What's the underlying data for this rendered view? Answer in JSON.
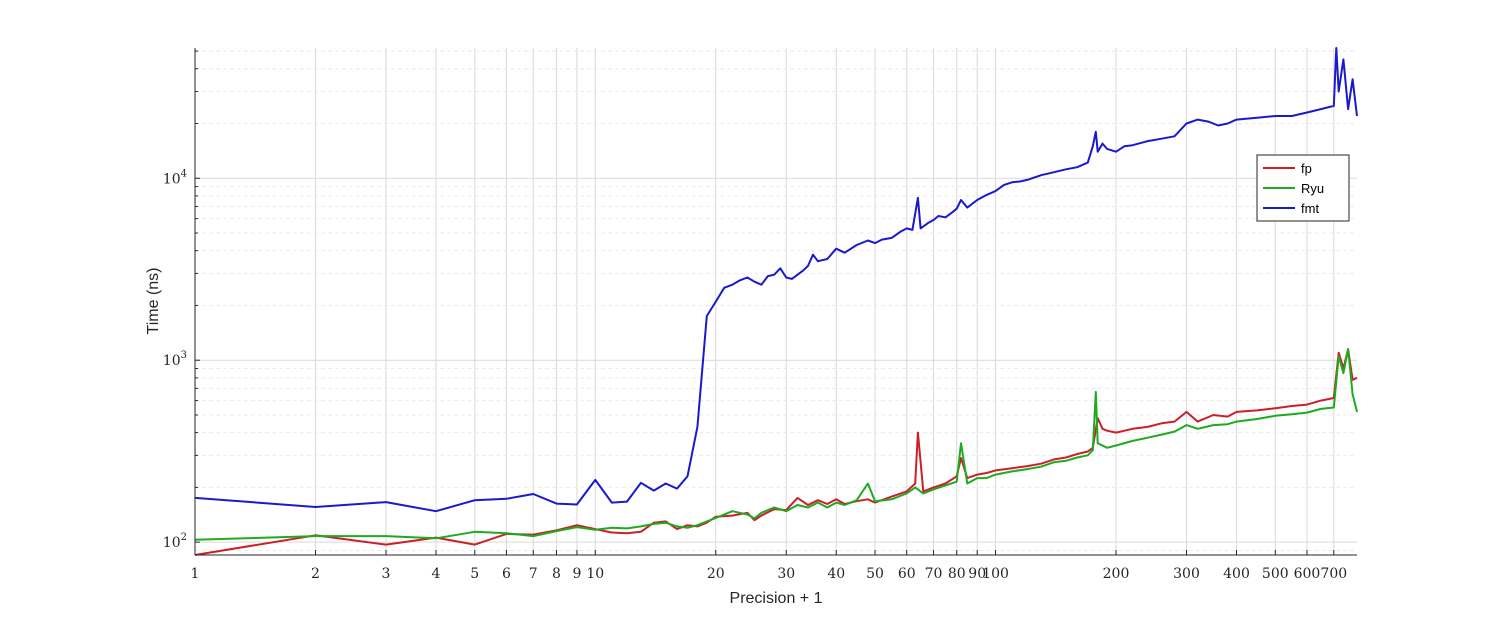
{
  "chart_data": {
    "type": "line",
    "xlabel": "Precision + 1",
    "ylabel": "Time (ns)",
    "xscale": "log",
    "yscale": "log",
    "xlim": [
      1,
      800
    ],
    "ylim": [
      85,
      52000
    ],
    "grid": true,
    "legend_position": "right",
    "x_ticks": [
      {
        "value": 1,
        "label": "1"
      },
      {
        "value": 2,
        "label": "2"
      },
      {
        "value": 3,
        "label": "3"
      },
      {
        "value": 4,
        "label": "4"
      },
      {
        "value": 5,
        "label": "5"
      },
      {
        "value": 6,
        "label": "6"
      },
      {
        "value": 7,
        "label": "7"
      },
      {
        "value": 8,
        "label": "8"
      },
      {
        "value": 9,
        "label": "9"
      },
      {
        "value": 10,
        "label": "10"
      },
      {
        "value": 20,
        "label": "20"
      },
      {
        "value": 30,
        "label": "30"
      },
      {
        "value": 40,
        "label": "40"
      },
      {
        "value": 50,
        "label": "50"
      },
      {
        "value": 60,
        "label": "60"
      },
      {
        "value": 70,
        "label": "70"
      },
      {
        "value": 80,
        "label": "80"
      },
      {
        "value": 90,
        "label": "90"
      },
      {
        "value": 100,
        "label": "100"
      },
      {
        "value": 200,
        "label": "200"
      },
      {
        "value": 300,
        "label": "300"
      },
      {
        "value": 400,
        "label": "400"
      },
      {
        "value": 500,
        "label": "500"
      },
      {
        "value": 600,
        "label": "600"
      },
      {
        "value": 700,
        "label": "700"
      }
    ],
    "y_ticks": [
      {
        "value": 100,
        "base": "10",
        "exp": "2"
      },
      {
        "value": 1000,
        "base": "10",
        "exp": "3"
      },
      {
        "value": 10000,
        "base": "10",
        "exp": "4"
      }
    ],
    "series": [
      {
        "name": "fp",
        "color": "#cc1f2b",
        "points": [
          [
            1,
            85
          ],
          [
            2,
            109
          ],
          [
            3,
            97
          ],
          [
            4,
            106
          ],
          [
            5,
            97
          ],
          [
            6,
            111
          ],
          [
            7,
            110
          ],
          [
            8,
            116
          ],
          [
            9,
            124
          ],
          [
            10,
            118
          ],
          [
            11,
            113
          ],
          [
            12,
            112
          ],
          [
            13,
            114
          ],
          [
            14,
            128
          ],
          [
            15,
            130
          ],
          [
            16,
            118
          ],
          [
            17,
            124
          ],
          [
            18,
            122
          ],
          [
            19,
            128
          ],
          [
            20,
            138
          ],
          [
            22,
            140
          ],
          [
            24,
            145
          ],
          [
            25,
            132
          ],
          [
            26,
            140
          ],
          [
            28,
            152
          ],
          [
            30,
            150
          ],
          [
            32,
            175
          ],
          [
            34,
            160
          ],
          [
            36,
            170
          ],
          [
            38,
            162
          ],
          [
            40,
            172
          ],
          [
            42,
            162
          ],
          [
            45,
            168
          ],
          [
            48,
            172
          ],
          [
            50,
            165
          ],
          [
            55,
            178
          ],
          [
            60,
            190
          ],
          [
            63,
            210
          ],
          [
            64,
            400
          ],
          [
            66,
            190
          ],
          [
            70,
            200
          ],
          [
            75,
            210
          ],
          [
            80,
            230
          ],
          [
            82,
            290
          ],
          [
            85,
            225
          ],
          [
            90,
            235
          ],
          [
            95,
            240
          ],
          [
            100,
            248
          ],
          [
            110,
            255
          ],
          [
            120,
            262
          ],
          [
            130,
            270
          ],
          [
            140,
            285
          ],
          [
            150,
            292
          ],
          [
            160,
            305
          ],
          [
            170,
            315
          ],
          [
            175,
            330
          ],
          [
            180,
            480
          ],
          [
            185,
            420
          ],
          [
            190,
            410
          ],
          [
            200,
            400
          ],
          [
            220,
            420
          ],
          [
            240,
            430
          ],
          [
            260,
            450
          ],
          [
            280,
            460
          ],
          [
            300,
            520
          ],
          [
            320,
            460
          ],
          [
            350,
            500
          ],
          [
            380,
            490
          ],
          [
            400,
            520
          ],
          [
            450,
            530
          ],
          [
            500,
            545
          ],
          [
            550,
            560
          ],
          [
            600,
            570
          ],
          [
            650,
            600
          ],
          [
            700,
            620
          ],
          [
            720,
            1100
          ],
          [
            740,
            900
          ],
          [
            760,
            1150
          ],
          [
            780,
            780
          ],
          [
            800,
            800
          ]
        ]
      },
      {
        "name": "Ryu",
        "color": "#1faa1f",
        "points": [
          [
            1,
            103
          ],
          [
            2,
            108
          ],
          [
            3,
            108
          ],
          [
            4,
            105
          ],
          [
            5,
            114
          ],
          [
            6,
            112
          ],
          [
            7,
            108
          ],
          [
            8,
            115
          ],
          [
            9,
            121
          ],
          [
            10,
            117
          ],
          [
            11,
            120
          ],
          [
            12,
            119
          ],
          [
            13,
            122
          ],
          [
            14,
            126
          ],
          [
            15,
            128
          ],
          [
            16,
            122
          ],
          [
            17,
            120
          ],
          [
            18,
            124
          ],
          [
            19,
            130
          ],
          [
            20,
            136
          ],
          [
            22,
            148
          ],
          [
            24,
            142
          ],
          [
            25,
            135
          ],
          [
            26,
            145
          ],
          [
            28,
            155
          ],
          [
            30,
            148
          ],
          [
            32,
            160
          ],
          [
            34,
            155
          ],
          [
            36,
            165
          ],
          [
            38,
            155
          ],
          [
            40,
            165
          ],
          [
            42,
            160
          ],
          [
            45,
            170
          ],
          [
            48,
            210
          ],
          [
            50,
            168
          ],
          [
            55,
            172
          ],
          [
            60,
            185
          ],
          [
            63,
            200
          ],
          [
            66,
            185
          ],
          [
            70,
            195
          ],
          [
            75,
            205
          ],
          [
            80,
            215
          ],
          [
            82,
            350
          ],
          [
            85,
            210
          ],
          [
            90,
            225
          ],
          [
            95,
            225
          ],
          [
            100,
            235
          ],
          [
            110,
            245
          ],
          [
            120,
            252
          ],
          [
            130,
            260
          ],
          [
            140,
            275
          ],
          [
            150,
            280
          ],
          [
            160,
            292
          ],
          [
            170,
            300
          ],
          [
            175,
            320
          ],
          [
            178,
            670
          ],
          [
            180,
            350
          ],
          [
            190,
            330
          ],
          [
            200,
            340
          ],
          [
            220,
            360
          ],
          [
            240,
            375
          ],
          [
            260,
            390
          ],
          [
            280,
            405
          ],
          [
            300,
            440
          ],
          [
            320,
            420
          ],
          [
            350,
            440
          ],
          [
            380,
            445
          ],
          [
            400,
            460
          ],
          [
            450,
            475
          ],
          [
            500,
            495
          ],
          [
            550,
            505
          ],
          [
            600,
            515
          ],
          [
            650,
            540
          ],
          [
            700,
            550
          ],
          [
            720,
            1050
          ],
          [
            740,
            850
          ],
          [
            760,
            1150
          ],
          [
            780,
            650
          ],
          [
            800,
            520
          ]
        ]
      },
      {
        "name": "fmt",
        "color": "#1a1acc",
        "points": [
          [
            1,
            175
          ],
          [
            2,
            156
          ],
          [
            3,
            166
          ],
          [
            4,
            148
          ],
          [
            5,
            170
          ],
          [
            6,
            173
          ],
          [
            7,
            184
          ],
          [
            8,
            163
          ],
          [
            9,
            161
          ],
          [
            10,
            220
          ],
          [
            11,
            165
          ],
          [
            12,
            167
          ],
          [
            13,
            212
          ],
          [
            14,
            192
          ],
          [
            15,
            210
          ],
          [
            16,
            197
          ],
          [
            17,
            230
          ],
          [
            18,
            430
          ],
          [
            19,
            1750
          ],
          [
            20,
            2100
          ],
          [
            21,
            2500
          ],
          [
            22,
            2600
          ],
          [
            23,
            2750
          ],
          [
            24,
            2850
          ],
          [
            25,
            2700
          ],
          [
            26,
            2600
          ],
          [
            27,
            2900
          ],
          [
            28,
            2950
          ],
          [
            29,
            3200
          ],
          [
            30,
            2850
          ],
          [
            31,
            2800
          ],
          [
            32,
            2950
          ],
          [
            33,
            3100
          ],
          [
            34,
            3300
          ],
          [
            35,
            3800
          ],
          [
            36,
            3500
          ],
          [
            38,
            3600
          ],
          [
            40,
            4100
          ],
          [
            42,
            3900
          ],
          [
            45,
            4300
          ],
          [
            48,
            4550
          ],
          [
            50,
            4400
          ],
          [
            52,
            4600
          ],
          [
            55,
            4700
          ],
          [
            58,
            5100
          ],
          [
            60,
            5300
          ],
          [
            62,
            5200
          ],
          [
            64,
            7800
          ],
          [
            65,
            5300
          ],
          [
            68,
            5700
          ],
          [
            70,
            5900
          ],
          [
            72,
            6200
          ],
          [
            75,
            6100
          ],
          [
            78,
            6500
          ],
          [
            80,
            6800
          ],
          [
            82,
            7600
          ],
          [
            85,
            6900
          ],
          [
            90,
            7600
          ],
          [
            95,
            8100
          ],
          [
            100,
            8500
          ],
          [
            105,
            9200
          ],
          [
            110,
            9500
          ],
          [
            115,
            9600
          ],
          [
            120,
            9800
          ],
          [
            130,
            10400
          ],
          [
            140,
            10800
          ],
          [
            150,
            11200
          ],
          [
            160,
            11500
          ],
          [
            170,
            12200
          ],
          [
            175,
            15000
          ],
          [
            178,
            18000
          ],
          [
            180,
            14000
          ],
          [
            185,
            15500
          ],
          [
            190,
            14500
          ],
          [
            200,
            14000
          ],
          [
            210,
            15000
          ],
          [
            220,
            15200
          ],
          [
            240,
            16000
          ],
          [
            260,
            16500
          ],
          [
            280,
            17000
          ],
          [
            300,
            20000
          ],
          [
            320,
            21000
          ],
          [
            340,
            20500
          ],
          [
            360,
            19500
          ],
          [
            380,
            20000
          ],
          [
            400,
            21000
          ],
          [
            450,
            21500
          ],
          [
            500,
            22000
          ],
          [
            550,
            22000
          ],
          [
            600,
            23000
          ],
          [
            650,
            24000
          ],
          [
            700,
            25000
          ],
          [
            710,
            52000
          ],
          [
            720,
            30000
          ],
          [
            740,
            45000
          ],
          [
            760,
            24000
          ],
          [
            780,
            35000
          ],
          [
            800,
            22000
          ]
        ]
      }
    ]
  }
}
